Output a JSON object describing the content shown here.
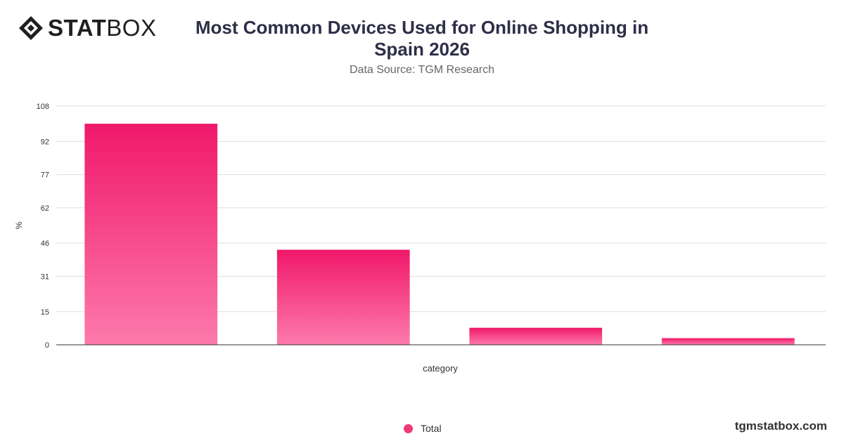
{
  "header": {
    "logo_text_bold": "STAT",
    "logo_text_light": "BOX",
    "title": "Most Common Devices Used for Online Shopping in Spain 2026",
    "subtitle": "Data Source: TGM Research"
  },
  "footer": {
    "brand": "tgmstatbox.com"
  },
  "colors": {
    "bar_top": "#f0186a",
    "bar_bottom": "#fd7aab",
    "grid": "#dddddd",
    "axis": "#333333"
  },
  "chart_data": {
    "type": "bar",
    "title": "Most Common Devices Used for Online Shopping in Spain 2026",
    "subtitle": "Data Source: TGM Research",
    "xlabel": "category",
    "ylabel": "%",
    "categories": [
      "",
      "",
      "",
      ""
    ],
    "series": [
      {
        "name": "Total",
        "values": [
          100,
          43,
          7.7,
          3
        ]
      }
    ],
    "yticks": [
      0,
      15,
      31,
      46,
      62,
      77,
      92,
      108
    ],
    "ylim": [
      0,
      108
    ],
    "grid": true,
    "legend": "bottom-center"
  }
}
